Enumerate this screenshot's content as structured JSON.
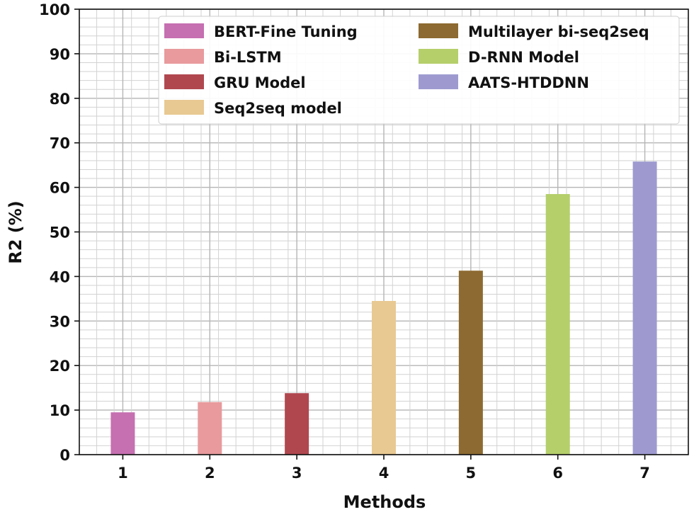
{
  "chart_data": {
    "type": "bar",
    "title": "",
    "xlabel": "Methods",
    "ylabel": "R2 (%)",
    "ylim": [
      0,
      100
    ],
    "yticks": [
      0,
      10,
      20,
      30,
      40,
      50,
      60,
      70,
      80,
      90,
      100
    ],
    "grid": true,
    "legend_position": "top-right",
    "categories": [
      "1",
      "2",
      "3",
      "4",
      "5",
      "6",
      "7"
    ],
    "series": [
      {
        "name": "BERT-Fine Tuning",
        "x": "1",
        "value": 9.5,
        "color": "#c66fb1"
      },
      {
        "name": "Bi-LSTM",
        "x": "2",
        "value": 11.8,
        "color": "#e89a9c"
      },
      {
        "name": "GRU Model",
        "x": "3",
        "value": 13.8,
        "color": "#b0474f"
      },
      {
        "name": "Seq2seq model",
        "x": "4",
        "value": 34.5,
        "color": "#e8c992"
      },
      {
        "name": "Multilayer bi-seq2seq",
        "x": "5",
        "value": 41.3,
        "color": "#8c6a31"
      },
      {
        "name": "D-RNN Model",
        "x": "6",
        "value": 58.5,
        "color": "#b5cf6b"
      },
      {
        "name": "AATS-HTDDNN",
        "x": "7",
        "value": 65.8,
        "color": "#9e9ad0"
      }
    ]
  }
}
